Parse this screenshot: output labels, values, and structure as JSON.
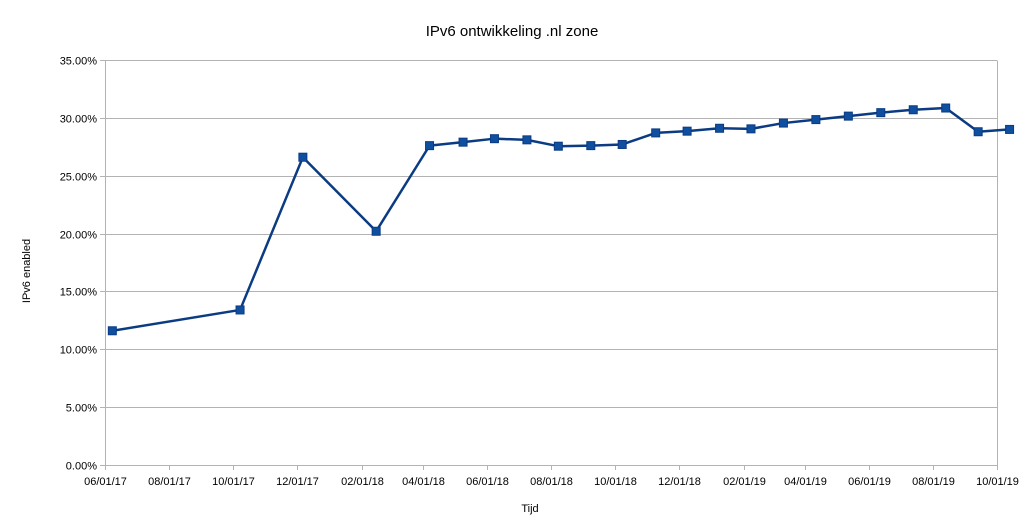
{
  "chart_data": {
    "type": "line",
    "title": "IPv6 ontwikkeling .nl zone",
    "xlabel": "Tijd",
    "ylabel": "IPv6 enabled",
    "ylim": [
      0,
      35
    ],
    "y_ticks": [
      "0.00%",
      "5.00%",
      "10.00%",
      "15.00%",
      "20.00%",
      "25.00%",
      "30.00%",
      "35.00%"
    ],
    "x_ticks": [
      "06/01/17",
      "08/01/17",
      "10/01/17",
      "12/01/17",
      "02/01/18",
      "04/01/18",
      "06/01/18",
      "08/01/18",
      "10/01/18",
      "12/01/18",
      "02/01/19",
      "04/01/19",
      "06/01/19",
      "08/01/19",
      "10/01/19"
    ],
    "xlim": [
      "2017-06-01",
      "2019-10-01"
    ],
    "grid": "horizontal",
    "line_color": "#0b3b82",
    "marker_color": "#0f4fa0",
    "series": [
      {
        "points": [
          {
            "x": "2017-06-08",
            "y": 11.6
          },
          {
            "x": "2017-10-08",
            "y": 13.4
          },
          {
            "x": "2017-12-07",
            "y": 26.6
          },
          {
            "x": "2018-02-15",
            "y": 20.2
          },
          {
            "x": "2018-04-07",
            "y": 27.6
          },
          {
            "x": "2018-05-09",
            "y": 27.9
          },
          {
            "x": "2018-06-08",
            "y": 28.2
          },
          {
            "x": "2018-07-09",
            "y": 28.1
          },
          {
            "x": "2018-08-08",
            "y": 27.55
          },
          {
            "x": "2018-09-08",
            "y": 27.6
          },
          {
            "x": "2018-10-08",
            "y": 27.7
          },
          {
            "x": "2018-11-09",
            "y": 28.7
          },
          {
            "x": "2018-12-09",
            "y": 28.85
          },
          {
            "x": "2019-01-09",
            "y": 29.1
          },
          {
            "x": "2019-02-08",
            "y": 29.05
          },
          {
            "x": "2019-03-11",
            "y": 29.55
          },
          {
            "x": "2019-04-11",
            "y": 29.85
          },
          {
            "x": "2019-05-12",
            "y": 30.15
          },
          {
            "x": "2019-06-12",
            "y": 30.45
          },
          {
            "x": "2019-07-13",
            "y": 30.7
          },
          {
            "x": "2019-08-13",
            "y": 30.85
          },
          {
            "x": "2019-09-13",
            "y": 28.8
          },
          {
            "x": "2019-10-13",
            "y": 29.0
          }
        ]
      }
    ]
  }
}
